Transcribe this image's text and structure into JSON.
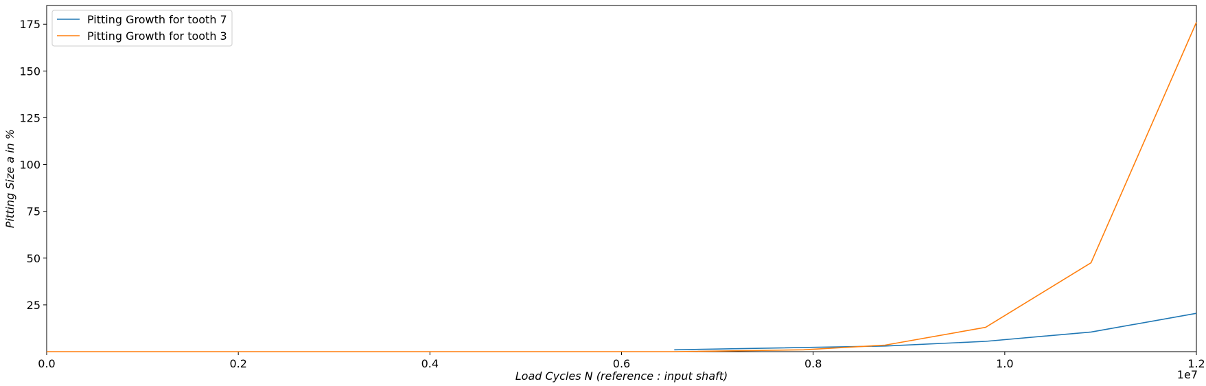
{
  "chart_data": {
    "type": "line",
    "title": "",
    "xlabel": "Load Cycles N (reference :  input shaft)",
    "ylabel": "Pitting Size a in %",
    "x_offset_label": "1e7",
    "xlim": [
      0,
      1.2
    ],
    "ylim": [
      0,
      185
    ],
    "x_ticks": [
      "0.0",
      "0.2",
      "0.4",
      "0.6",
      "0.8",
      "1.0",
      "1.2"
    ],
    "y_ticks": [
      "25",
      "50",
      "75",
      "100",
      "125",
      "150",
      "175"
    ],
    "grid": false,
    "legend_position": "upper-left",
    "series": [
      {
        "name": "Pitting Growth for tooth 7",
        "color": "#1f77b4",
        "x": [
          0.655,
          0.875,
          0.98,
          1.09,
          1.2
        ],
        "y": [
          1.0,
          3.0,
          5.5,
          10.5,
          20.5
        ]
      },
      {
        "name": "Pitting Growth for tooth 3",
        "color": "#ff7f0e",
        "x": [
          0.0,
          0.2,
          0.4,
          0.6,
          0.655,
          0.79,
          0.875,
          0.98,
          1.09,
          1.2
        ],
        "y": [
          0.0,
          0.0,
          0.0,
          0.0,
          0.0,
          1.0,
          3.5,
          13.0,
          47.5,
          176.0
        ]
      }
    ]
  }
}
